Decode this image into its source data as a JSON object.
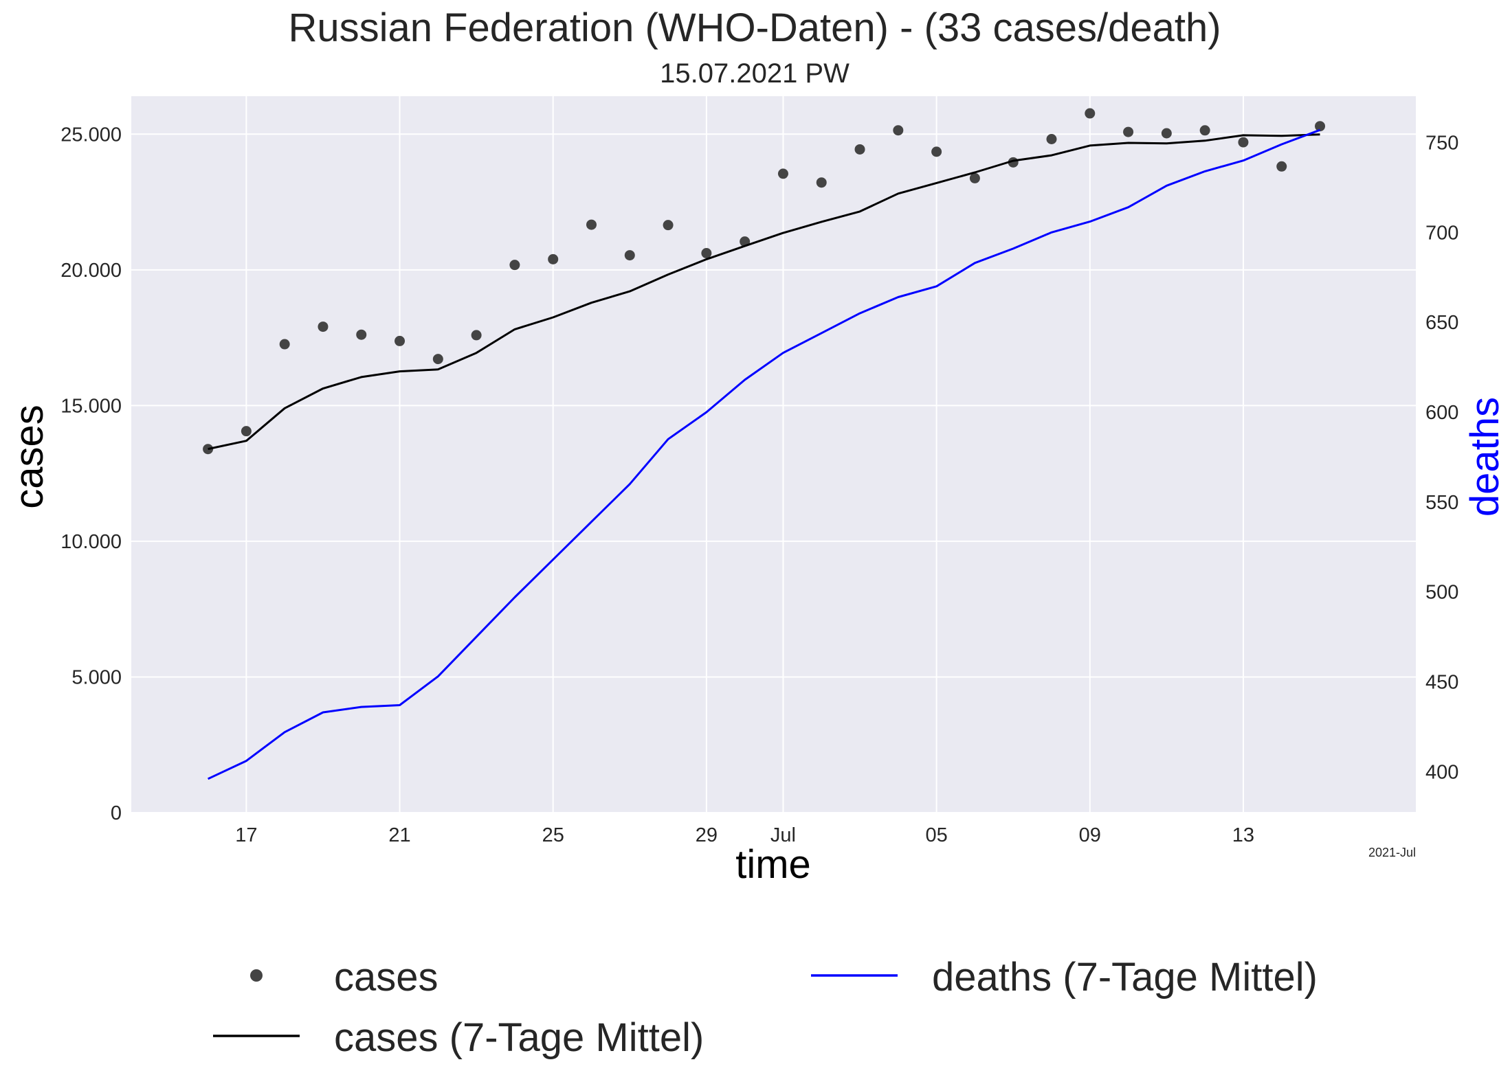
{
  "chart_data": {
    "type": "line",
    "title": "Russian Federation (WHO-Daten) - (33 cases/death)",
    "subtitle": "15.07.2021 PW",
    "xlabel": "time",
    "ylabel": "cases",
    "y2label": "deaths",
    "x_offset_label": "2021-Jul",
    "x_start_date": "2021-06-16",
    "x_tick_labels": [
      {
        "date": "2021-06-17",
        "label": "17"
      },
      {
        "date": "2021-06-21",
        "label": "21"
      },
      {
        "date": "2021-06-25",
        "label": "25"
      },
      {
        "date": "2021-06-29",
        "label": "29"
      },
      {
        "date": "2021-07-01",
        "label": "Jul"
      },
      {
        "date": "2021-07-05",
        "label": "05"
      },
      {
        "date": "2021-07-09",
        "label": "09"
      },
      {
        "date": "2021-07-13",
        "label": "13"
      }
    ],
    "x_range": [
      "2021-06-14 00:00",
      "2021-07-17 12:00"
    ],
    "ylim": [
      0,
      26400
    ],
    "y_ticks": [
      {
        "value": 0,
        "label": "0"
      },
      {
        "value": 5000,
        "label": "5.000"
      },
      {
        "value": 10000,
        "label": "10.000"
      },
      {
        "value": 15000,
        "label": "15.000"
      },
      {
        "value": 20000,
        "label": "20.000"
      },
      {
        "value": 25000,
        "label": "25.000"
      }
    ],
    "y2lim": [
      377.2,
      775.8
    ],
    "y2_ticks": [
      {
        "value": 400,
        "label": "400"
      },
      {
        "value": 450,
        "label": "450"
      },
      {
        "value": 500,
        "label": "500"
      },
      {
        "value": 550,
        "label": "550"
      },
      {
        "value": 600,
        "label": "600"
      },
      {
        "value": 650,
        "label": "650"
      },
      {
        "value": 700,
        "label": "700"
      },
      {
        "value": 750,
        "label": "750"
      }
    ],
    "grid": true,
    "legend_position": "bottom",
    "series": [
      {
        "name": "cases",
        "kind": "scatter",
        "axis": "left",
        "color": "#444444",
        "values": [
          13397,
          14057,
          17262,
          17906,
          17611,
          17378,
          16715,
          17594,
          20182,
          20393,
          21665,
          20538,
          21650,
          20616,
          21042,
          23543,
          23218,
          24439,
          25142,
          24353,
          23378,
          23962,
          24818,
          25766,
          25082,
          25033,
          25140,
          24702,
          23811,
          25293
        ]
      },
      {
        "name": "cases (7-Tage Mittel)",
        "kind": "line",
        "axis": "left",
        "color": "#000000",
        "values": [
          13400,
          13700,
          14900,
          15630,
          16050,
          16260,
          16330,
          16940,
          17810,
          18250,
          18790,
          19210,
          19830,
          20390,
          20880,
          21360,
          21770,
          22150,
          22810,
          23200,
          23590,
          24020,
          24220,
          24580,
          24680,
          24660,
          24760,
          24960,
          24940,
          24990
        ]
      },
      {
        "name": "deaths (7-Tage Mittel)",
        "kind": "line",
        "axis": "right",
        "color": "#0000ff",
        "values": [
          396,
          406,
          422,
          433,
          436,
          437,
          453,
          475,
          497,
          518,
          539,
          560,
          585,
          600,
          618,
          633,
          644,
          655,
          664,
          670,
          683,
          691,
          700,
          706,
          714,
          726,
          734,
          740,
          749,
          757
        ]
      }
    ]
  }
}
